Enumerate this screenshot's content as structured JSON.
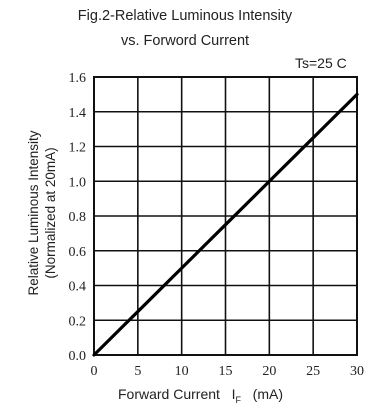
{
  "chart_data": {
    "type": "line",
    "title": "Fig.2-Relative Luminous Intensity",
    "subtitle": "vs. Forword Current",
    "condition": "Ts=25 C",
    "ylabel_line1": "Relative Luminous Intensity",
    "ylabel_line2": "(Normalized at 20mA)",
    "xlabel_main": "Forward Current",
    "xlabel_symbol": "I",
    "xlabel_sub": "F",
    "xlabel_unit": "(mA)",
    "xlim": [
      0,
      30
    ],
    "ylim": [
      0,
      1.6
    ],
    "x_ticks": [
      "0",
      "5",
      "10",
      "15",
      "20",
      "25",
      "30"
    ],
    "y_ticks": [
      "0.0",
      "0.2",
      "0.4",
      "0.6",
      "0.8",
      "1.0",
      "1.2",
      "1.4",
      "1.6"
    ],
    "grid": true,
    "series": [
      {
        "x": [
          0,
          5,
          10,
          15,
          20,
          25,
          30
        ],
        "y": [
          0,
          0.25,
          0.5,
          0.75,
          1.0,
          1.25,
          1.5
        ]
      }
    ]
  }
}
